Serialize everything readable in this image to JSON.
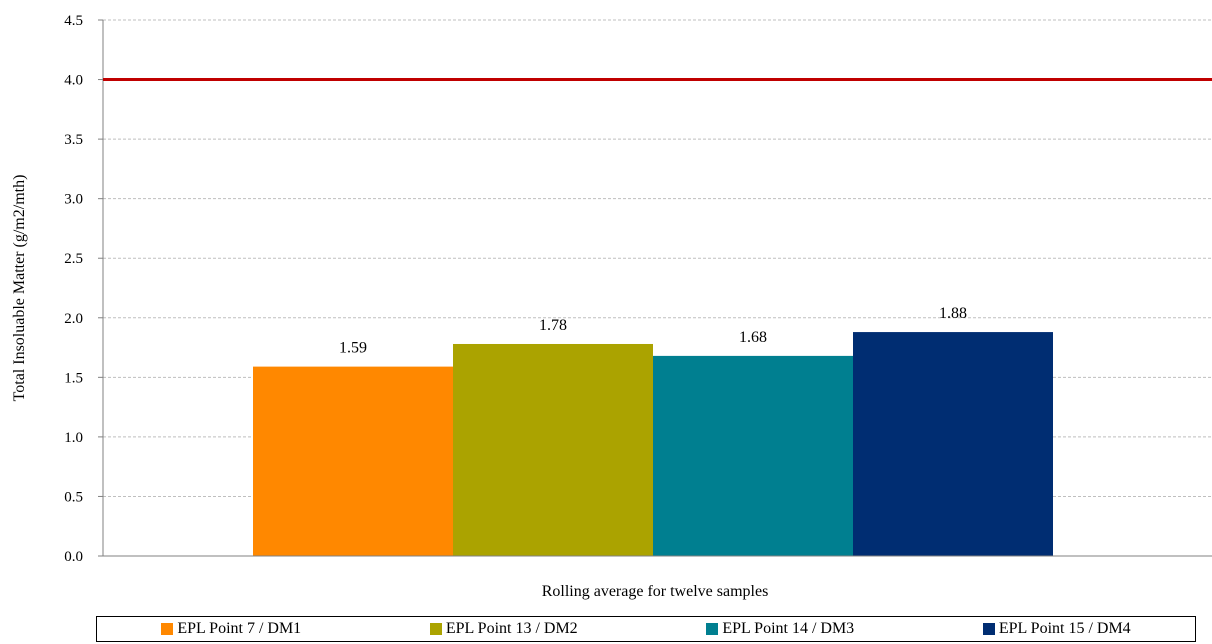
{
  "chart_data": {
    "type": "bar",
    "ylabel": "Total Insoluable Matter (g/m2/mth)",
    "xlabel": "Rolling average for twelve samples",
    "ylim": [
      0,
      4.5
    ],
    "yticks": [
      "0.0",
      "0.5",
      "1.0",
      "1.5",
      "2.0",
      "2.5",
      "3.0",
      "3.5",
      "4.0",
      "4.5"
    ],
    "grid": true,
    "legend_position": "bottom",
    "reference_line": {
      "value": 4.0,
      "color": "#c00000"
    },
    "series": [
      {
        "name": "EPL Point 7 / DM1",
        "value": 1.59,
        "label": "1.59",
        "color": "#ff8800"
      },
      {
        "name": "EPL Point 13 / DM2",
        "value": 1.78,
        "label": "1.78",
        "color": "#aba300"
      },
      {
        "name": "EPL Point 14 / DM3",
        "value": 1.68,
        "label": "1.68",
        "color": "#007f90"
      },
      {
        "name": "EPL Point 15 / DM4",
        "value": 1.88,
        "label": "1.88",
        "color": "#002d72"
      }
    ]
  }
}
